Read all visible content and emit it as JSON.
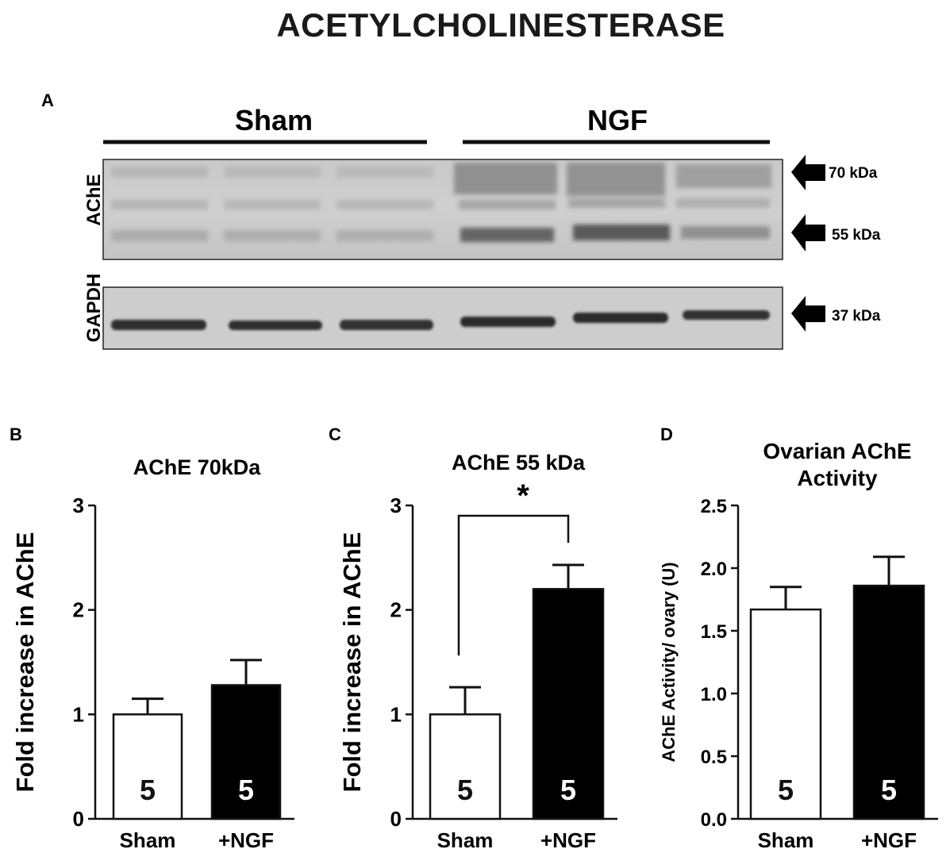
{
  "title": "ACETYLCHOLINESTERASE",
  "blot": {
    "panel_label": "A",
    "groups": [
      "Sham",
      "NGF"
    ],
    "rows": [
      "AChE",
      "GAPDH"
    ],
    "markers": [
      "70 kDa",
      "55 kDa",
      "37 kDa"
    ]
  },
  "chart_data": [
    {
      "panel": "B",
      "type": "bar",
      "title": "AChE 70kDa",
      "xlabel": "",
      "ylabel": "Fold increase in AChE",
      "ylim": [
        0,
        3
      ],
      "yticks": [
        "0",
        "1",
        "2",
        "3"
      ],
      "categories": [
        "Sham",
        "+NGF"
      ],
      "values": [
        1.0,
        1.28
      ],
      "errors": [
        0.15,
        0.24
      ],
      "n_labels": [
        "5",
        "5"
      ],
      "fills": [
        "#ffffff",
        "#000000"
      ],
      "significance": ""
    },
    {
      "panel": "C",
      "type": "bar",
      "title": "AChE 55 kDa",
      "xlabel": "",
      "ylabel": "Fold increase in AChE",
      "ylim": [
        0,
        3
      ],
      "yticks": [
        "0",
        "1",
        "2",
        "3"
      ],
      "categories": [
        "Sham",
        "+NGF"
      ],
      "values": [
        1.0,
        2.2
      ],
      "errors": [
        0.26,
        0.23
      ],
      "n_labels": [
        "5",
        "5"
      ],
      "fills": [
        "#ffffff",
        "#000000"
      ],
      "significance": "*"
    },
    {
      "panel": "D",
      "type": "bar",
      "title": "Ovarian AChE Activity",
      "xlabel": "",
      "ylabel": "AChE Activity/ ovary (U)",
      "ylim": [
        0,
        2.5
      ],
      "yticks": [
        "0.0",
        "0.5",
        "1.0",
        "1.5",
        "2.0",
        "2.5"
      ],
      "categories": [
        "Sham",
        "+NGF"
      ],
      "values": [
        1.67,
        1.86
      ],
      "errors": [
        0.18,
        0.23
      ],
      "n_labels": [
        "5",
        "5"
      ],
      "fills": [
        "#ffffff",
        "#000000"
      ],
      "significance": ""
    }
  ]
}
